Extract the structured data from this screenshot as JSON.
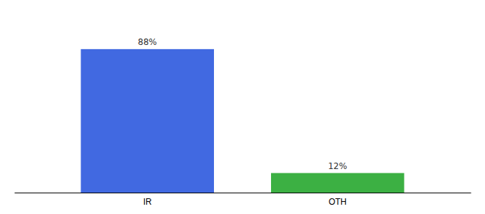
{
  "chart_data": {
    "type": "bar",
    "categories": [
      "IR",
      "OTH"
    ],
    "values": [
      88,
      12
    ],
    "value_labels": [
      "88%",
      "12%"
    ],
    "colors": [
      "#4169e1",
      "#3cb043"
    ],
    "ylim": [
      0,
      105
    ],
    "data_labels": true,
    "tick_labels": "x"
  }
}
